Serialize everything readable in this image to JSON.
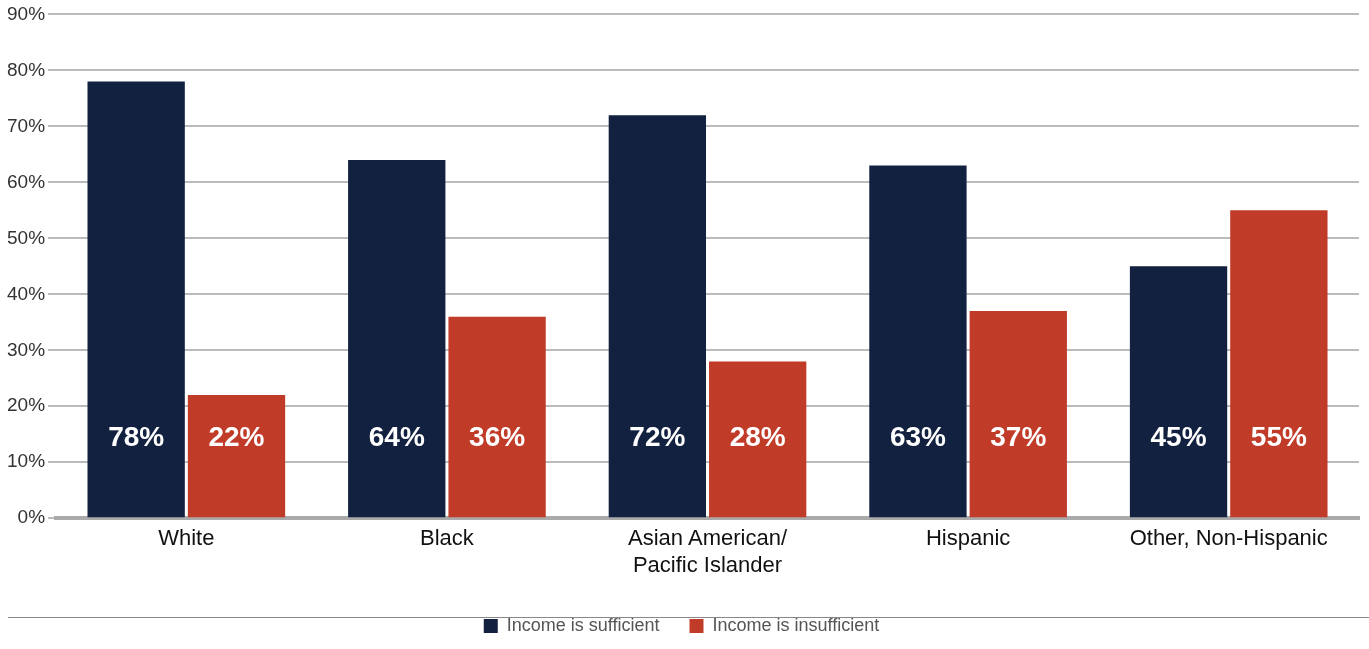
{
  "chart_data": {
    "type": "bar",
    "categories": [
      "White",
      "Black",
      "Asian American/ Pacific Islander",
      "Hispanic",
      "Other, Non-Hispanic"
    ],
    "series": [
      {
        "name": "Income is sufficient",
        "color": "#12213f",
        "values": [
          78,
          64,
          72,
          63,
          45
        ],
        "value_labels": [
          "78%",
          "64%",
          "72%",
          "63%",
          "45%"
        ]
      },
      {
        "name": "Income is insufficient",
        "color": "#c13b29",
        "values": [
          22,
          36,
          28,
          37,
          55
        ],
        "value_labels": [
          "22%",
          "36%",
          "28%",
          "37%",
          "55%"
        ]
      }
    ],
    "ylim": [
      0,
      90
    ],
    "yticks": [
      {
        "value": 0,
        "label": "0%"
      },
      {
        "value": 10,
        "label": "10%"
      },
      {
        "value": 20,
        "label": "20%"
      },
      {
        "value": 30,
        "label": "30%"
      },
      {
        "value": 40,
        "label": "40%"
      },
      {
        "value": 50,
        "label": "50%"
      },
      {
        "value": 60,
        "label": "60%"
      },
      {
        "value": 70,
        "label": "70%"
      },
      {
        "value": 80,
        "label": "80%"
      },
      {
        "value": 90,
        "label": "90%"
      }
    ],
    "grid": "y",
    "legend": "bottom"
  }
}
